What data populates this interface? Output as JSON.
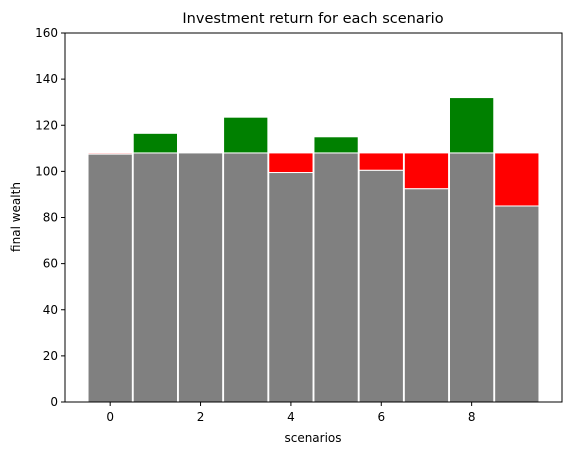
{
  "chart_data": {
    "type": "bar",
    "title": "Investment return for each scenario",
    "xlabel": "scenarios",
    "ylabel": "final wealth",
    "x": [
      0,
      1,
      2,
      3,
      4,
      5,
      6,
      7,
      8,
      9
    ],
    "xticks": [
      "0",
      "2",
      "4",
      "6",
      "8"
    ],
    "yticks": [
      "0",
      "20",
      "40",
      "60",
      "80",
      "100",
      "120",
      "140",
      "160"
    ],
    "xlim": [
      -1,
      10
    ],
    "ylim": [
      0,
      160
    ],
    "baseline": 108,
    "final_wealth": [
      107.5,
      116.5,
      108,
      123.5,
      99.5,
      115,
      100.5,
      92.5,
      132,
      85
    ],
    "grid": false,
    "colors": {
      "kept": "#808080",
      "gain": "#008000",
      "loss": "#ff0000",
      "bar_edge": "#ffffff"
    }
  }
}
